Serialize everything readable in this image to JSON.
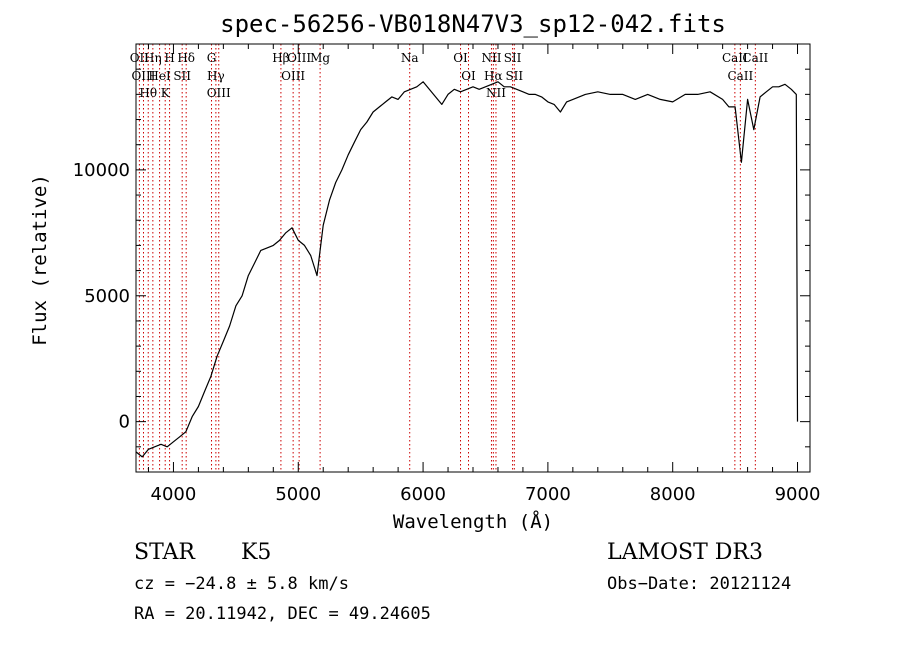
{
  "chart_data": {
    "type": "line",
    "title": "spec-56256-VB018N47V3_sp12-042.fits",
    "xlabel": "Wavelength (Å)",
    "ylabel": "Flux (relative)",
    "xlim": [
      3700,
      9100
    ],
    "ylim": [
      -2000,
      15000
    ],
    "x_ticks": [
      4000,
      5000,
      6000,
      7000,
      8000,
      9000
    ],
    "y_ticks": [
      0,
      5000,
      10000
    ],
    "grid": false,
    "series": [
      {
        "x": [
          3700,
          3750,
          3800,
          3850,
          3900,
          3950,
          4000,
          4050,
          4100,
          4150,
          4200,
          4250,
          4300,
          4350,
          4400,
          4450,
          4500,
          4550,
          4600,
          4650,
          4700,
          4750,
          4800,
          4850,
          4900,
          4950,
          5000,
          5050,
          5100,
          5150,
          5200,
          5250,
          5300,
          5350,
          5400,
          5450,
          5500,
          5550,
          5600,
          5650,
          5700,
          5750,
          5800,
          5850,
          5900,
          5950,
          6000,
          6050,
          6100,
          6150,
          6200,
          6250,
          6300,
          6350,
          6400,
          6450,
          6500,
          6550,
          6600,
          6650,
          6700,
          6750,
          6800,
          6850,
          6900,
          6950,
          7000,
          7050,
          7100,
          7150,
          7200,
          7300,
          7400,
          7500,
          7600,
          7700,
          7800,
          7900,
          8000,
          8100,
          8200,
          8300,
          8400,
          8450,
          8500,
          8550,
          8600,
          8650,
          8700,
          8750,
          8800,
          8850,
          8900,
          8950,
          8990,
          9000
        ],
        "y": [
          -1200,
          -1400,
          -1100,
          -1000,
          -900,
          -1000,
          -800,
          -600,
          -400,
          200,
          600,
          1200,
          1800,
          2600,
          3200,
          3800,
          4600,
          5000,
          5800,
          6300,
          6800,
          6900,
          7000,
          7200,
          7500,
          7700,
          7200,
          7000,
          6600,
          5800,
          7800,
          8800,
          9500,
          10000,
          10600,
          11100,
          11600,
          11900,
          12300,
          12500,
          12700,
          12900,
          12800,
          13100,
          13200,
          13300,
          13500,
          13200,
          12900,
          12600,
          13000,
          13200,
          13100,
          13200,
          13300,
          13200,
          13300,
          13400,
          13500,
          13300,
          13300,
          13200,
          13100,
          13000,
          13000,
          12900,
          12700,
          12600,
          12300,
          12700,
          12800,
          13000,
          13100,
          13000,
          13000,
          12800,
          13000,
          12800,
          12700,
          13000,
          13000,
          13100,
          12800,
          12500,
          12500,
          10300,
          12800,
          11600,
          12900,
          13100,
          13300,
          13300,
          13400,
          13200,
          13000,
          0
        ]
      }
    ],
    "line_markers": [
      {
        "label": "Hθ",
        "x": 3798
      },
      {
        "label": "OII",
        "x": 3727
      },
      {
        "label": "OIII",
        "x": 3760
      },
      {
        "label": "K",
        "x": 3934
      },
      {
        "label": "HeI",
        "x": 3889
      },
      {
        "label": "Hη",
        "x": 3835
      },
      {
        "label": "Hδ",
        "x": 4102
      },
      {
        "label": "SII",
        "x": 4070
      },
      {
        "label": "H",
        "x": 3969
      },
      {
        "label": "OIII",
        "x": 4363
      },
      {
        "label": "Hγ",
        "x": 4340
      },
      {
        "label": "G",
        "x": 4305
      },
      {
        "label": "OIII",
        "x": 5007
      },
      {
        "label": "OIII",
        "x": 4959
      },
      {
        "label": "Hβ",
        "x": 4861
      },
      {
        "label": "Mg",
        "x": 5175
      },
      {
        "label": "Na",
        "x": 5893
      },
      {
        "label": "OI",
        "x": 6300
      },
      {
        "label": "OI",
        "x": 6364
      },
      {
        "label": "NII",
        "x": 6548
      },
      {
        "label": "Hα",
        "x": 6563
      },
      {
        "label": "NII",
        "x": 6584
      },
      {
        "label": "SII",
        "x": 6717
      },
      {
        "label": "SII",
        "x": 6731
      },
      {
        "label": "CaII",
        "x": 8498
      },
      {
        "label": "CaII",
        "x": 8542
      },
      {
        "label": "CaII",
        "x": 8662
      }
    ]
  },
  "info": {
    "object_class": "STAR",
    "subclass": "K5",
    "release": "LAMOST DR3",
    "cz": "cz = −24.8 ± 5.8 km/s",
    "obs_date": "Obs−Date: 20121124",
    "coords": "RA =  20.11942, DEC =  49.24605"
  },
  "colors": {
    "spectrum": "#000000",
    "marker_line": "#cc0000",
    "text": "#000000"
  }
}
